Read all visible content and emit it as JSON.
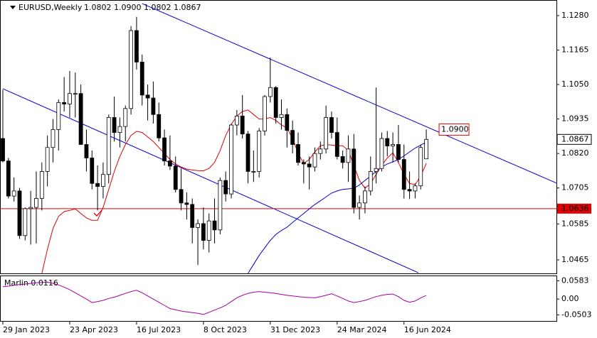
{
  "chart_data": [
    {
      "type": "candlestick",
      "title": "EURUSD,Weekly",
      "ohlc_label": "1.0802 1.0900 1.0802 1.0867",
      "categories": [
        "29 Jan 2023",
        null,
        null,
        null,
        null,
        null,
        null,
        null,
        null,
        null,
        null,
        null,
        "23 Apr 2023",
        null,
        null,
        null,
        null,
        null,
        null,
        null,
        null,
        null,
        null,
        null,
        "16 Jul 2023",
        null,
        null,
        null,
        null,
        null,
        null,
        null,
        null,
        null,
        null,
        null,
        "8 Oct 2023",
        null,
        null,
        null,
        null,
        null,
        null,
        null,
        null,
        null,
        null,
        null,
        "31 Dec 2023",
        null,
        null,
        null,
        null,
        null,
        null,
        null,
        null,
        null,
        null,
        null,
        "24 Mar 2024",
        null,
        null,
        null,
        null,
        null,
        null,
        null,
        null,
        null,
        null,
        null,
        "16 Jun 2024",
        null,
        null,
        null,
        null
      ],
      "open": [
        1.087,
        1.0795,
        1.0678,
        1.0695,
        1.0546,
        1.0636,
        1.064,
        1.067,
        1.076,
        1.084,
        1.09,
        1.099,
        1.0985,
        1.102,
        1.102,
        1.085,
        1.0805,
        1.072,
        1.071,
        1.075,
        1.094,
        1.089,
        1.091,
        1.097,
        1.123,
        1.1125,
        1.1015,
        1.1005,
        1.095,
        1.0872,
        1.0795,
        1.0778,
        1.07,
        1.0655,
        1.065,
        1.0573,
        1.0586,
        1.053,
        1.0595,
        1.0565,
        1.073,
        1.0685,
        1.0915,
        1.0945,
        1.0885,
        1.076,
        1.076,
        1.0895,
        1.101,
        1.104,
        1.094,
        1.095,
        1.0897,
        1.085,
        1.079,
        1.0785,
        1.0775,
        1.082,
        1.0835,
        1.094,
        1.089,
        1.081,
        1.079,
        1.0835,
        1.064,
        1.0655,
        1.0695,
        1.076,
        1.077,
        1.087,
        1.0845,
        1.085,
        1.08,
        1.07,
        1.0695,
        1.0712,
        1.0802
      ],
      "high": [
        1.1033,
        1.0805,
        1.074,
        1.0705,
        1.064,
        1.0695,
        1.076,
        1.079,
        1.088,
        1.0935,
        1.1,
        1.1075,
        1.1095,
        1.109,
        1.105,
        1.09,
        1.083,
        1.078,
        1.079,
        1.095,
        1.101,
        1.094,
        1.098,
        1.1245,
        1.1276,
        1.115,
        1.105,
        1.106,
        1.099,
        1.09,
        1.088,
        1.081,
        1.077,
        1.069,
        1.067,
        1.06,
        1.064,
        1.062,
        1.067,
        1.074,
        1.076,
        1.092,
        1.0965,
        1.1015,
        1.0895,
        1.083,
        1.0905,
        1.1015,
        1.114,
        1.1045,
        1.1,
        1.097,
        1.093,
        1.089,
        1.08,
        1.081,
        1.084,
        1.086,
        1.098,
        1.096,
        1.094,
        1.083,
        1.088,
        1.0885,
        1.068,
        1.071,
        1.081,
        1.104,
        1.089,
        1.0895,
        1.089,
        1.0915,
        1.085,
        1.076,
        1.072,
        1.085,
        1.09
      ],
      "low": [
        1.079,
        1.067,
        1.066,
        1.0535,
        1.053,
        1.0516,
        1.052,
        1.063,
        1.071,
        1.079,
        1.083,
        1.096,
        1.094,
        1.094,
        1.085,
        1.076,
        1.07,
        1.063,
        1.067,
        1.072,
        1.086,
        1.084,
        1.086,
        1.095,
        1.11,
        1.098,
        1.093,
        1.092,
        1.086,
        1.078,
        1.0765,
        1.069,
        1.063,
        1.06,
        1.052,
        1.0448,
        1.05,
        1.049,
        1.052,
        1.055,
        1.066,
        1.067,
        1.088,
        1.087,
        1.072,
        1.0725,
        1.074,
        1.088,
        1.099,
        1.092,
        1.09,
        1.084,
        1.082,
        1.078,
        1.072,
        1.07,
        1.076,
        1.08,
        1.082,
        1.087,
        1.08,
        1.077,
        1.0725,
        1.062,
        1.06,
        1.062,
        1.068,
        1.072,
        1.076,
        1.081,
        1.079,
        1.079,
        1.067,
        1.0668,
        1.067,
        1.07,
        1.0802
      ],
      "close": [
        1.0795,
        1.0678,
        1.0695,
        1.0546,
        1.0636,
        1.064,
        1.067,
        1.076,
        1.084,
        1.09,
        1.099,
        1.0985,
        1.102,
        1.102,
        1.085,
        1.0805,
        1.072,
        1.071,
        1.075,
        1.094,
        1.089,
        1.091,
        1.097,
        1.123,
        1.1125,
        1.1015,
        1.1005,
        1.095,
        1.0872,
        1.0795,
        1.0778,
        1.07,
        1.0655,
        1.065,
        1.0573,
        1.0586,
        1.053,
        1.0595,
        1.0565,
        1.073,
        1.0685,
        1.0915,
        1.0945,
        1.0885,
        1.076,
        1.076,
        1.0895,
        1.101,
        1.104,
        1.094,
        1.095,
        1.0897,
        1.085,
        1.079,
        1.0785,
        1.0775,
        1.082,
        1.0835,
        1.094,
        1.089,
        1.081,
        1.079,
        1.0835,
        1.064,
        1.0655,
        1.0695,
        1.076,
        1.077,
        1.087,
        1.0845,
        1.085,
        1.08,
        1.07,
        1.0695,
        1.0712,
        1.084,
        1.0867
      ],
      "up_color": "#ffffff",
      "down_color": "#000000",
      "series": [
        {
          "color": "#e00000",
          "values": [
            null,
            null,
            null,
            null,
            null,
            null,
            null,
            1.042,
            1.05,
            1.057,
            1.061,
            1.0626,
            1.063,
            1.0635,
            1.062,
            1.0605,
            1.0597,
            1.0597,
            1.064,
            1.07,
            1.076,
            1.081,
            1.085,
            1.088,
            1.0894,
            1.089,
            1.0875,
            1.086,
            1.084,
            1.082,
            1.08,
            1.0785,
            1.0775,
            1.0768,
            1.0765,
            1.0763,
            1.0762,
            1.077,
            1.079,
            1.083,
            1.088,
            1.0917,
            1.0945,
            1.096,
            1.0965,
            1.095,
            1.0935,
            1.0935,
            1.094,
            1.093,
            1.0915,
            1.0905,
            1.087,
            1.082,
            1.0787,
            1.08,
            1.0825,
            1.0846,
            1.085,
            1.0848,
            1.0846,
            1.0846,
            1.083,
            1.078,
            1.073,
            1.0704,
            1.072,
            1.075,
            1.078,
            1.0805,
            1.0822,
            1.079,
            1.075,
            1.072,
            1.0716,
            1.0745,
            1.0787
          ]
        },
        {
          "color": "#0000d0",
          "values": [
            null,
            null,
            null,
            null,
            null,
            null,
            null,
            null,
            null,
            null,
            null,
            null,
            null,
            null,
            null,
            null,
            null,
            null,
            null,
            null,
            null,
            null,
            null,
            null,
            null,
            null,
            null,
            null,
            null,
            null,
            null,
            null,
            null,
            null,
            null,
            null,
            null,
            null,
            null,
            null,
            null,
            null,
            null,
            null,
            1.042,
            1.045,
            1.048,
            1.0505,
            1.053,
            1.055,
            1.0563,
            1.0574,
            1.059,
            1.0605,
            1.062,
            1.0635,
            1.065,
            1.0662,
            1.0675,
            1.0688,
            1.0695,
            1.07,
            1.0702,
            1.0704,
            1.0715,
            1.073,
            1.0745,
            1.076,
            1.0775,
            1.0785,
            1.0792,
            1.08,
            1.0812,
            1.0825,
            1.0838,
            1.0848,
            1.0858
          ]
        }
      ],
      "trendlines": [
        {
          "color": "#0000d0",
          "x": [
            25.0,
            99.4
          ],
          "y": [
            1.132,
            1.0721
          ]
        },
        {
          "color": "#0000d0",
          "x": [
            0,
            74.6
          ],
          "y": [
            1.1036,
            1.0422
          ]
        }
      ],
      "hlines": [
        1.0636
      ],
      "hline_color": "#e00000",
      "annotations": [
        {
          "x": 76,
          "value": 1.09,
          "label": "1.0900"
        }
      ],
      "ylim": [
        1.042,
        1.1332
      ],
      "yticks": [
        {
          "value": 1.128,
          "label": "1.1280"
        },
        1.1165,
        {
          "value": 1.105,
          "label": "1.1050"
        },
        1.0935,
        {
          "value": 1.082,
          "label": "1.0820"
        },
        1.0705,
        1.0585,
        1.0465
      ]
    },
    {
      "type": "line",
      "title": "Marlin 0.0116",
      "series": [
        {
          "color": "#a000a0",
          "values": [
            0.039,
            0.041,
            0.044,
            0.046,
            0.048,
            0.05,
            0.052,
            0.053,
            0.054,
            0.05,
            0.045,
            0.038,
            0.03,
            0.02,
            0.01,
            0.0,
            -0.011,
            -0.008,
            -0.004,
            0.002,
            0.006,
            0.012,
            0.018,
            0.024,
            0.028,
            0.02,
            0.01,
            0.0,
            -0.01,
            -0.02,
            -0.03,
            -0.034,
            -0.038,
            -0.041,
            -0.043,
            -0.045,
            -0.049,
            -0.042,
            -0.035,
            -0.028,
            -0.02,
            -0.008,
            0.004,
            0.012,
            0.018,
            0.022,
            0.024,
            0.022,
            0.02,
            0.018,
            0.015,
            0.012,
            0.01,
            0.008,
            0.006,
            0.005,
            0.004,
            0.008,
            0.012,
            0.017,
            0.01,
            0.002,
            -0.006,
            -0.011,
            -0.008,
            -0.004,
            0.002,
            0.008,
            0.012,
            0.015,
            0.016,
            0.008,
            -0.004,
            -0.01,
            -0.006,
            0.004,
            0.0116
          ]
        }
      ],
      "ylim": [
        -0.0696,
        0.075
      ],
      "yticks": [
        0.0583,
        {
          "value": 0,
          "label": "0.00"
        },
        -0.0503
      ]
    }
  ]
}
